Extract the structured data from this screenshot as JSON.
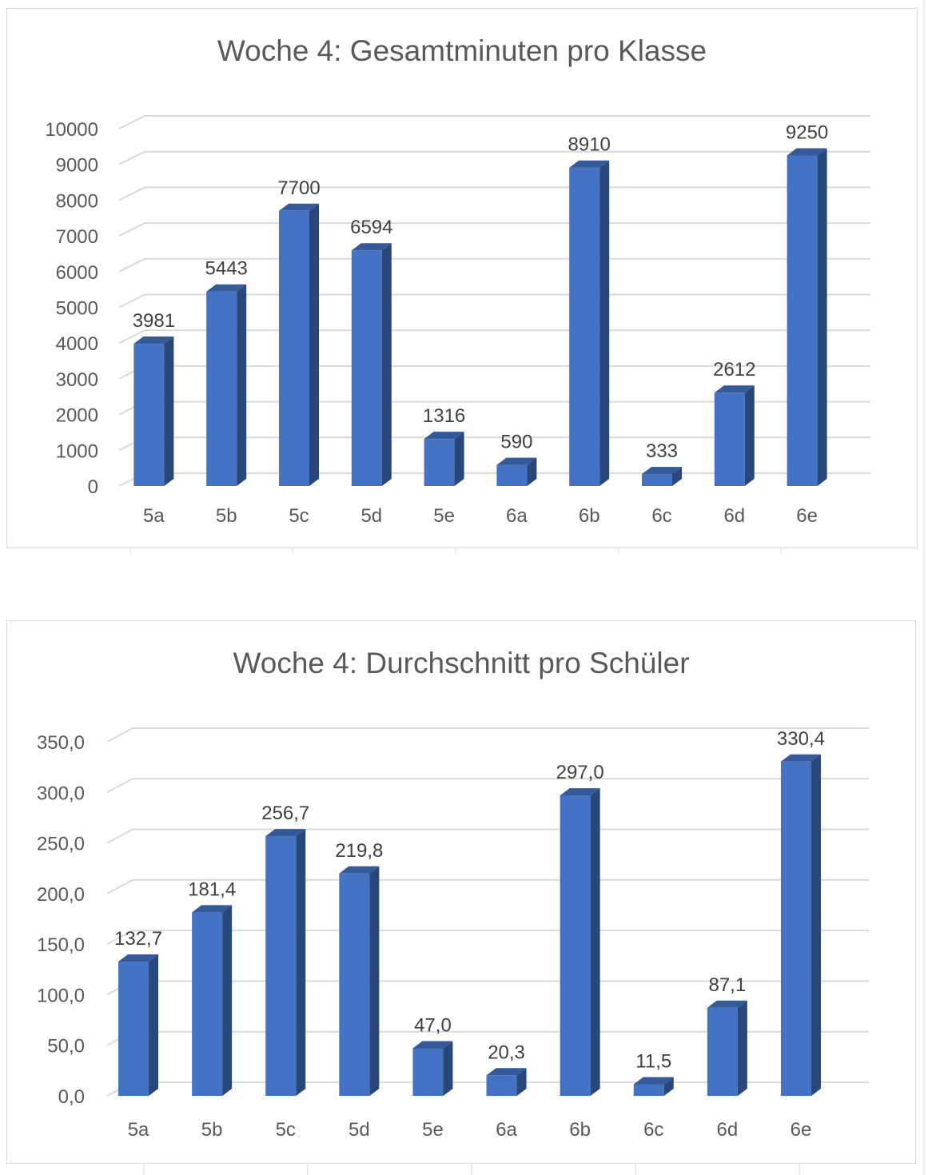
{
  "chart_data": [
    {
      "type": "bar",
      "title": "Woche 4: Gesamtminuten pro Klasse",
      "categories": [
        "5a",
        "5b",
        "5c",
        "5d",
        "5e",
        "6a",
        "6b",
        "6c",
        "6d",
        "6e"
      ],
      "values": [
        3981,
        5443,
        7700,
        6594,
        1316,
        590,
        8910,
        333,
        2612,
        9250
      ],
      "data_labels": [
        "3981",
        "5443",
        "7700",
        "6594",
        "1316",
        "590",
        "8910",
        "333",
        "2612",
        "9250"
      ],
      "y_ticks": [
        "0",
        "1000",
        "2000",
        "3000",
        "4000",
        "5000",
        "6000",
        "7000",
        "8000",
        "9000",
        "10000"
      ],
      "ylim": [
        0,
        10000
      ],
      "grid": true,
      "legend": "none",
      "style": "3d-column",
      "bar_color": "#4472C4"
    },
    {
      "type": "bar",
      "title": "Woche 4: Durchschnitt pro Schüler",
      "categories": [
        "5a",
        "5b",
        "5c",
        "5d",
        "5e",
        "6a",
        "6b",
        "6c",
        "6d",
        "6e"
      ],
      "values": [
        132.7,
        181.4,
        256.7,
        219.8,
        47.0,
        20.3,
        297.0,
        11.5,
        87.1,
        330.4
      ],
      "data_labels": [
        "132,7",
        "181,4",
        "256,7",
        "219,8",
        "47,0",
        "20,3",
        "297,0",
        "11,5",
        "87,1",
        "330,4"
      ],
      "y_ticks": [
        "0,0",
        "50,0",
        "100,0",
        "150,0",
        "200,0",
        "250,0",
        "300,0",
        "350,0"
      ],
      "ylim": [
        0,
        350
      ],
      "grid": true,
      "legend": "none",
      "style": "3d-column",
      "bar_color": "#4472C4"
    }
  ]
}
